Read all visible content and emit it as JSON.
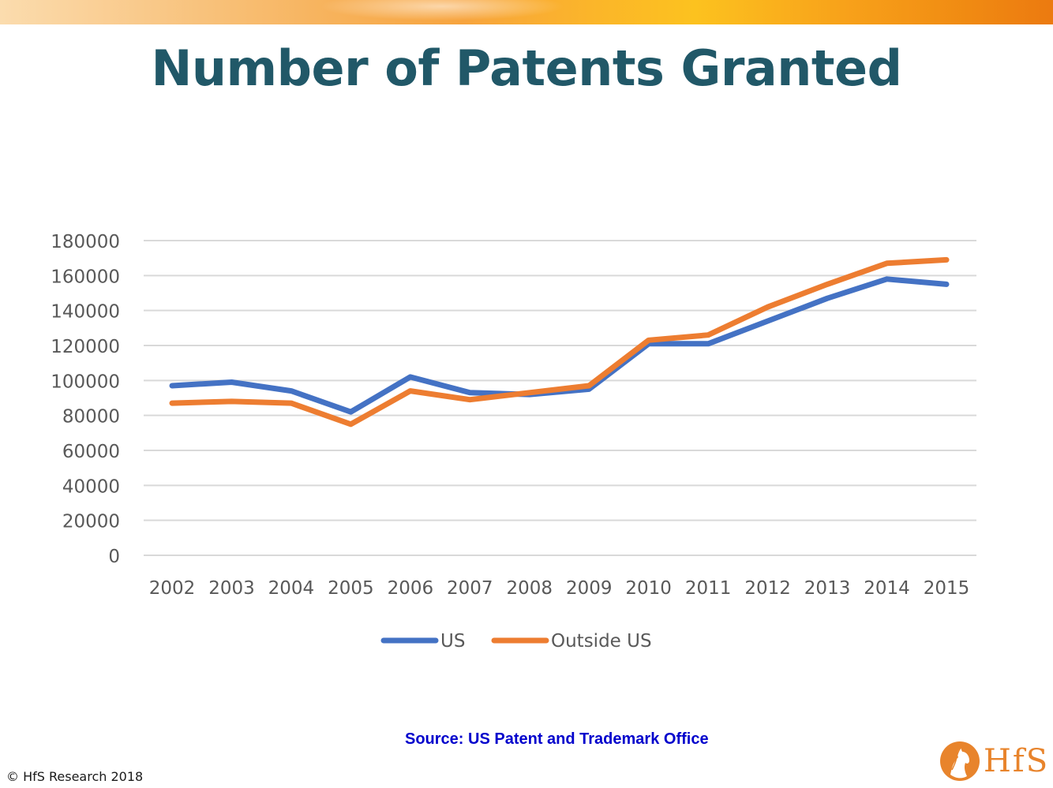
{
  "slide": {
    "title": "Number of Patents Granted",
    "source": "Source: US Patent and Trademark Office",
    "copyright": "© HfS Research 2018",
    "logo_text": "HfS",
    "accent_color": "#215868",
    "banner_color": "#f7a43e"
  },
  "chart_data": {
    "type": "line",
    "title": "",
    "xlabel": "",
    "ylabel": "",
    "x": [
      "2002",
      "2003",
      "2004",
      "2005",
      "2006",
      "2007",
      "2008",
      "2009",
      "2010",
      "2011",
      "2012",
      "2013",
      "2014",
      "2015"
    ],
    "series": [
      {
        "name": "US",
        "color": "#4472c4",
        "values": [
          97000,
          99000,
          94000,
          82000,
          102000,
          93000,
          92000,
          95000,
          121000,
          121000,
          134000,
          147000,
          158000,
          155000
        ]
      },
      {
        "name": "Outside US",
        "color": "#ed7d31",
        "values": [
          87000,
          88000,
          87000,
          75000,
          94000,
          89000,
          93000,
          97000,
          123000,
          126000,
          142000,
          155000,
          167000,
          169000
        ]
      }
    ],
    "yticks": [
      0,
      20000,
      40000,
      60000,
      80000,
      100000,
      120000,
      140000,
      160000,
      180000
    ],
    "ylim": [
      0,
      180000
    ],
    "grid": true,
    "legend": "bottom"
  }
}
